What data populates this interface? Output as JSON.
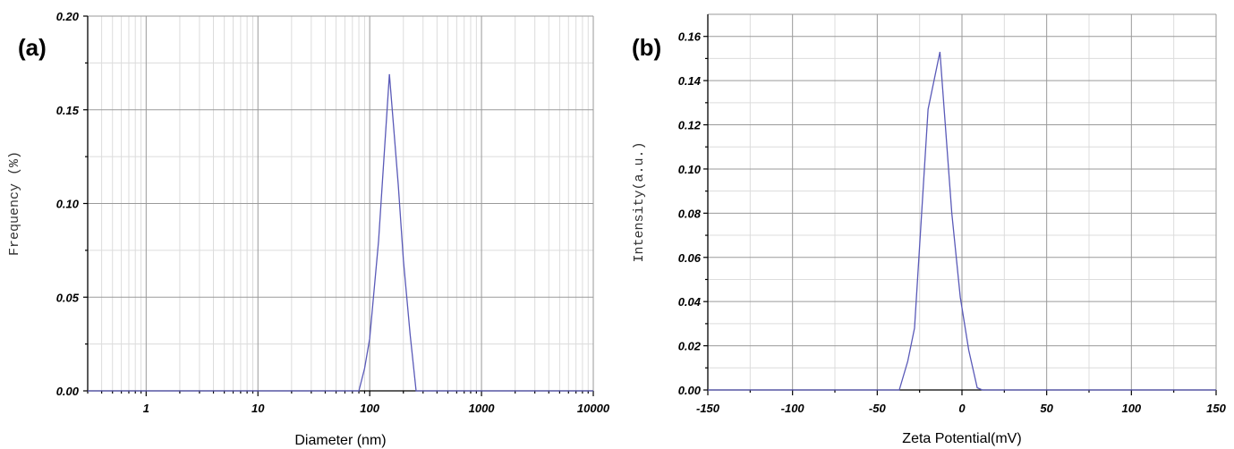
{
  "chart_data": [
    {
      "panel_label": "(a)",
      "type": "line",
      "xlabel": "Diameter (nm)",
      "ylabel": "Frequency (%)",
      "xscale": "log",
      "xlim": [
        0.3,
        10000
      ],
      "ylim": [
        0,
        0.2
      ],
      "xticks": [
        "1",
        "10",
        "100",
        "1000",
        "10000"
      ],
      "xtick_values": [
        1,
        10,
        100,
        1000,
        10000
      ],
      "yticks": [
        "0.00",
        "0.05",
        "0.10",
        "0.15",
        "0.20"
      ],
      "ytick_values": [
        0,
        0.05,
        0.1,
        0.15,
        0.2
      ],
      "grid": true,
      "series": [
        {
          "color": "#5a5ab8",
          "x": [
            0.3,
            80,
            90,
            100,
            120,
            150,
            180,
            200,
            230,
            260,
            10000
          ],
          "y": [
            0,
            0,
            0.012,
            0.028,
            0.08,
            0.169,
            0.11,
            0.07,
            0.03,
            0,
            0
          ]
        }
      ]
    },
    {
      "panel_label": "(b)",
      "type": "line",
      "xlabel": "Zeta Potential(mV)",
      "ylabel": "Intensity(a.u.)",
      "xscale": "linear",
      "xlim": [
        -150,
        150
      ],
      "ylim": [
        0,
        0.17
      ],
      "xticks": [
        "-150",
        "-100",
        "-50",
        "0",
        "50",
        "100",
        "150"
      ],
      "xtick_values": [
        -150,
        -100,
        -50,
        0,
        50,
        100,
        150
      ],
      "yticks": [
        "0.00",
        "0.02",
        "0.04",
        "0.06",
        "0.08",
        "0.10",
        "0.12",
        "0.14",
        "0.16"
      ],
      "ytick_values": [
        0,
        0.02,
        0.04,
        0.06,
        0.08,
        0.1,
        0.12,
        0.14,
        0.16
      ],
      "grid": true,
      "series": [
        {
          "color": "#5a5ab8",
          "x": [
            -150,
            -37,
            -32,
            -28,
            -20,
            -13,
            -6,
            -1,
            4,
            9,
            12,
            150
          ],
          "y": [
            0,
            0,
            0.013,
            0.028,
            0.127,
            0.153,
            0.08,
            0.042,
            0.018,
            0.001,
            0,
            0
          ]
        }
      ]
    }
  ]
}
